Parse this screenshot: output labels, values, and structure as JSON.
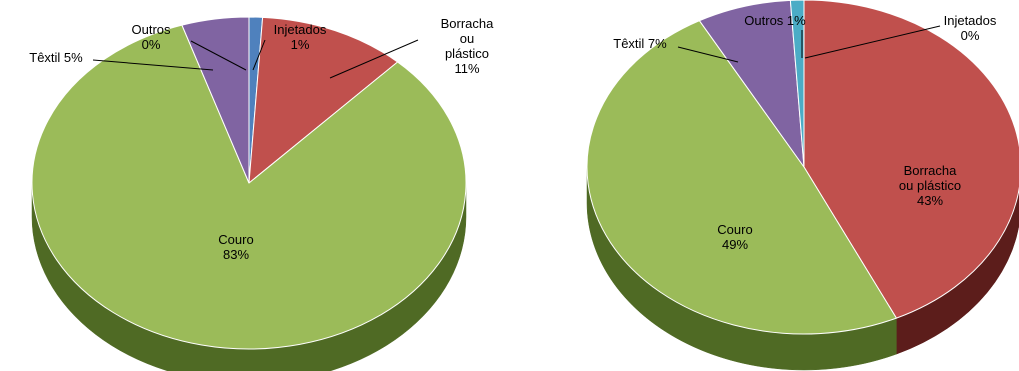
{
  "chart_data": [
    {
      "type": "pie",
      "variant": "3d",
      "title": "",
      "slices": [
        {
          "name": "Injetados",
          "value": 1,
          "label": "1%",
          "color": "#4F81BD",
          "side_color": "#2E4F77"
        },
        {
          "name": "Borracha ou plástico",
          "value": 11,
          "label": "11%",
          "color": "#C0504D",
          "side_color": "#6E2320"
        },
        {
          "name": "Couro",
          "value": 83,
          "label": "83%",
          "color": "#9BBB59",
          "side_color": "#4F6A24"
        },
        {
          "name": "Têxtil",
          "value": 5,
          "label": "5%",
          "color": "#8064A2",
          "side_color": "#4A3866"
        },
        {
          "name": "Outros",
          "value": 0,
          "label": "0%",
          "color": "#4BACC6",
          "side_color": "#236F84"
        }
      ]
    },
    {
      "type": "pie",
      "variant": "3d",
      "title": "",
      "slices": [
        {
          "name": "Injetados",
          "value": 0,
          "label": "0%",
          "color": "#4F81BD",
          "side_color": "#2E4F77"
        },
        {
          "name": "Borracha ou plástico",
          "value": 43,
          "label": "43%",
          "color": "#C0504D",
          "side_color": "#5C1D1B"
        },
        {
          "name": "Couro",
          "value": 49,
          "label": "49%",
          "color": "#9BBB59",
          "side_color": "#4F6A24"
        },
        {
          "name": "Têxtil",
          "value": 7,
          "label": "7%",
          "color": "#8064A2",
          "side_color": "#4A3866"
        },
        {
          "name": "Outros",
          "value": 1,
          "label": "1%",
          "color": "#4BACC6",
          "side_color": "#236F84"
        }
      ]
    }
  ]
}
